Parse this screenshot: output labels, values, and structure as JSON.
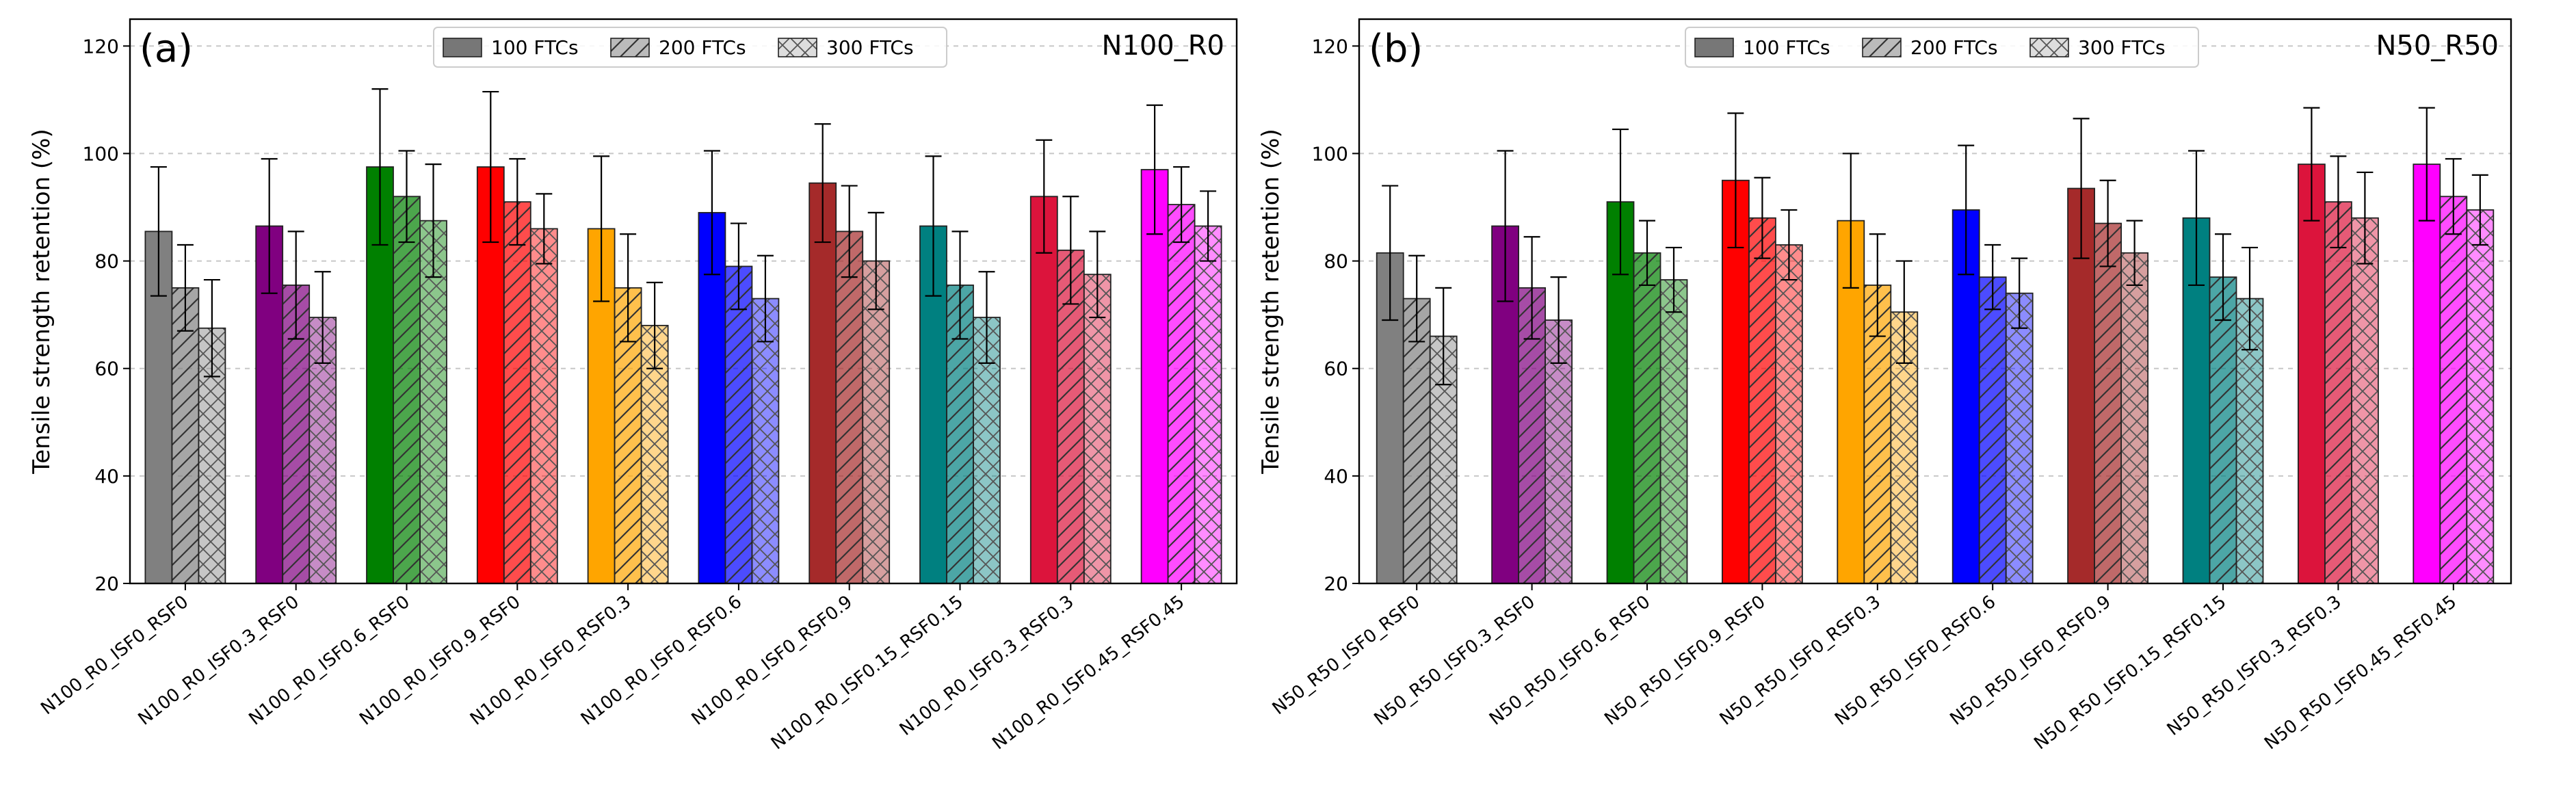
{
  "chart_data": [
    {
      "type": "bar",
      "panel_label": "(a)",
      "title": "N100_R0",
      "xlabel": "",
      "ylabel": "Tensile strength retention (%)",
      "ylim": [
        20,
        125
      ],
      "yticks": [
        20,
        40,
        60,
        80,
        100,
        120
      ],
      "grid": true,
      "legend_position": "top-center",
      "categories": [
        "N100_R0_ISF0_RSF0",
        "N100_R0_ISF0.3_RSF0",
        "N100_R0_ISF0.6_RSF0",
        "N100_R0_ISF0.9_RSF0",
        "N100_R0_ISF0_RSF0.3",
        "N100_R0_ISF0_RSF0.6",
        "N100_R0_ISF0_RSF0.9",
        "N100_R0_ISF0.15_RSF0.15",
        "N100_R0_ISF0.3_RSF0.3",
        "N100_R0_ISF0.45_RSF0.45"
      ],
      "category_colors": [
        "#808080",
        "#800080",
        "#008000",
        "#ff0000",
        "#ffa500",
        "#0000ff",
        "#a52a2a",
        "#008080",
        "#dc143c",
        "#ff00ff"
      ],
      "series": [
        {
          "name": "100 FTCs",
          "values": [
            85.5,
            86.5,
            97.5,
            97.5,
            86,
            89,
            94.5,
            86.5,
            92,
            97
          ],
          "errors": [
            12,
            12.5,
            14.5,
            14,
            13.5,
            11.5,
            11,
            13,
            10.5,
            12
          ]
        },
        {
          "name": "200 FTCs",
          "values": [
            75,
            75.5,
            92,
            91,
            75,
            79,
            85.5,
            75.5,
            82,
            90.5
          ],
          "errors": [
            8,
            10,
            8.5,
            8,
            10,
            8,
            8.5,
            10,
            10,
            7
          ]
        },
        {
          "name": "300 FTCs",
          "values": [
            67.5,
            69.5,
            87.5,
            86,
            68,
            73,
            80,
            69.5,
            77.5,
            86.5
          ],
          "errors": [
            9,
            8.5,
            10.5,
            6.5,
            8,
            8,
            9,
            8.5,
            8,
            6.5
          ]
        }
      ]
    },
    {
      "type": "bar",
      "panel_label": "(b)",
      "title": "N50_R50",
      "xlabel": "",
      "ylabel": "Tensile strength retention (%)",
      "ylim": [
        20,
        125
      ],
      "yticks": [
        20,
        40,
        60,
        80,
        100,
        120
      ],
      "grid": true,
      "legend_position": "top-center",
      "categories": [
        "N50_R50_ISF0_RSF0",
        "N50_R50_ISF0.3_RSF0",
        "N50_R50_ISF0.6_RSF0",
        "N50_R50_ISF0.9_RSF0",
        "N50_R50_ISF0_RSF0.3",
        "N50_R50_ISF0_RSF0.6",
        "N50_R50_ISF0_RSF0.9",
        "N50_R50_ISF0.15_RSF0.15",
        "N50_R50_ISF0.3_RSF0.3",
        "N50_R50_ISF0.45_RSF0.45"
      ],
      "category_colors": [
        "#808080",
        "#800080",
        "#008000",
        "#ff0000",
        "#ffa500",
        "#0000ff",
        "#a52a2a",
        "#008080",
        "#dc143c",
        "#ff00ff"
      ],
      "series": [
        {
          "name": "100 FTCs",
          "values": [
            81.5,
            86.5,
            91,
            95,
            87.5,
            89.5,
            93.5,
            88,
            98,
            98
          ],
          "errors": [
            12.5,
            14,
            13.5,
            12.5,
            12.5,
            12,
            13,
            12.5,
            10.5,
            10.5
          ]
        },
        {
          "name": "200 FTCs",
          "values": [
            73,
            75,
            81.5,
            88,
            75.5,
            77,
            87,
            77,
            91,
            92
          ],
          "errors": [
            8,
            9.5,
            6,
            7.5,
            9.5,
            6,
            8,
            8,
            8.5,
            7
          ]
        },
        {
          "name": "300 FTCs",
          "values": [
            66,
            69,
            76.5,
            83,
            70.5,
            74,
            81.5,
            73,
            88,
            89.5
          ],
          "errors": [
            9,
            8,
            6,
            6.5,
            9.5,
            6.5,
            6,
            9.5,
            8.5,
            6.5
          ]
        }
      ]
    }
  ]
}
